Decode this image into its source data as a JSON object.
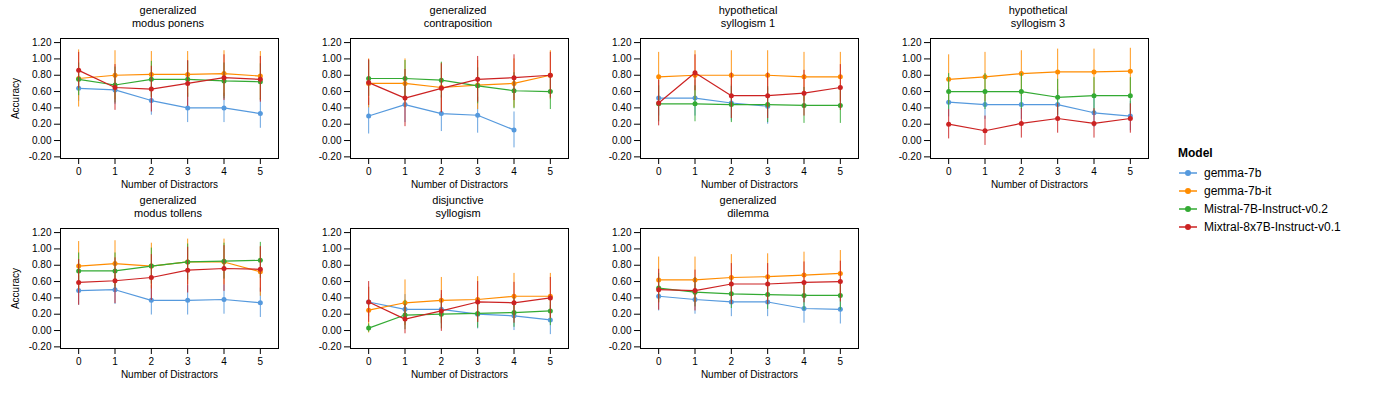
{
  "chart_data": [
    {
      "type": "line",
      "title": "generalized\nmodus ponens",
      "xlabel": "Number of Distractors",
      "ylabel": "Accuracy",
      "legend": "right",
      "legend_title": "Model",
      "x": [
        0,
        1,
        2,
        3,
        4,
        5
      ],
      "xlim": [
        -0.5,
        5.5
      ],
      "xticks": [
        0,
        1,
        2,
        3,
        4,
        5
      ],
      "ylim": [
        -0.22,
        1.25
      ],
      "yticks": [
        {
          "value": -0.2,
          "label": "-0.20"
        },
        {
          "value": 0.0,
          "label": "0.00"
        },
        {
          "value": 0.2,
          "label": "0.20"
        },
        {
          "value": 0.4,
          "label": "0.40"
        },
        {
          "value": 0.6,
          "label": "0.60"
        },
        {
          "value": 0.8,
          "label": "0.80"
        },
        {
          "value": 1.0,
          "label": "1.00"
        },
        {
          "value": 1.2,
          "label": "1.20"
        }
      ],
      "series": [
        {
          "name": "gemma-7b",
          "color": "#5599DD",
          "marker": "circle",
          "values": [
            0.64,
            0.62,
            0.49,
            0.4,
            0.4,
            0.33
          ],
          "yerr": [
            0.16,
            0.18,
            0.18,
            0.18,
            0.18,
            0.18
          ]
        },
        {
          "name": "gemma-7b-it",
          "color": "#FF8C00",
          "marker": "circle",
          "values": [
            0.76,
            0.8,
            0.81,
            0.81,
            0.82,
            0.79
          ],
          "yerr": [
            0.35,
            0.3,
            0.28,
            0.28,
            0.28,
            0.3
          ]
        },
        {
          "name": "Mistral-7B-Instruct-v0.2",
          "color": "#33AA33",
          "marker": "circle",
          "values": [
            0.75,
            0.68,
            0.75,
            0.75,
            0.73,
            0.72
          ],
          "yerr": [
            0.2,
            0.22,
            0.22,
            0.22,
            0.22,
            0.22
          ]
        },
        {
          "name": "Mixtral-8x7B-Instruct-v0.1",
          "color": "#CC2222",
          "marker": "circle",
          "values": [
            0.86,
            0.65,
            0.63,
            0.7,
            0.77,
            0.75
          ],
          "yerr": [
            0.22,
            0.28,
            0.28,
            0.28,
            0.28,
            0.28
          ]
        }
      ]
    },
    {
      "type": "line",
      "title": "generalized\ncontraposition",
      "xlabel": "Number of Distractors",
      "x": [
        0,
        1,
        2,
        3,
        4,
        5
      ],
      "xlim": [
        -0.5,
        5.5
      ],
      "xticks": [
        0,
        1,
        2,
        3,
        4,
        5
      ],
      "ylim": [
        -0.22,
        1.25
      ],
      "yticks": [
        {
          "value": -0.2,
          "label": "-0.20"
        },
        {
          "value": 0.0,
          "label": "0.00"
        },
        {
          "value": 0.2,
          "label": "0.20"
        },
        {
          "value": 0.4,
          "label": "0.40"
        },
        {
          "value": 0.6,
          "label": "0.60"
        },
        {
          "value": 0.8,
          "label": "0.80"
        },
        {
          "value": 1.0,
          "label": "1.00"
        },
        {
          "value": 1.2,
          "label": "1.20"
        }
      ],
      "series": [
        {
          "name": "gemma-7b",
          "color": "#5599DD",
          "marker": "circle",
          "values": [
            0.3,
            0.44,
            0.33,
            0.31,
            0.13,
            null
          ],
          "yerr": [
            0.22,
            0.22,
            0.22,
            0.22,
            0.22,
            0.22
          ]
        },
        {
          "name": "gemma-7b-it",
          "color": "#FF8C00",
          "marker": "circle",
          "values": [
            0.7,
            0.7,
            0.65,
            0.68,
            0.7,
            0.8
          ],
          "yerr": [
            0.3,
            0.3,
            0.3,
            0.3,
            0.3,
            0.3
          ]
        },
        {
          "name": "Mistral-7B-Instruct-v0.2",
          "color": "#33AA33",
          "marker": "circle",
          "values": [
            0.76,
            0.76,
            0.74,
            0.67,
            0.61,
            0.6
          ],
          "yerr": [
            0.22,
            0.22,
            0.22,
            0.22,
            0.22,
            0.22
          ]
        },
        {
          "name": "Mixtral-8x7B-Instruct-v0.1",
          "color": "#CC2222",
          "marker": "circle",
          "values": [
            0.71,
            0.52,
            0.64,
            0.75,
            0.77,
            0.8
          ],
          "yerr": [
            0.28,
            0.35,
            0.3,
            0.28,
            0.28,
            0.28
          ]
        }
      ]
    },
    {
      "type": "line",
      "title": "hypothetical\nsyllogism 1",
      "xlabel": "Number of Distractors",
      "x": [
        0,
        1,
        2,
        3,
        4,
        5
      ],
      "xlim": [
        -0.5,
        5.5
      ],
      "xticks": [
        0,
        1,
        2,
        3,
        4,
        5
      ],
      "ylim": [
        -0.22,
        1.25
      ],
      "yticks": [
        {
          "value": -0.2,
          "label": "-0.20"
        },
        {
          "value": 0.0,
          "label": "0.00"
        },
        {
          "value": 0.2,
          "label": "0.20"
        },
        {
          "value": 0.4,
          "label": "0.40"
        },
        {
          "value": 0.6,
          "label": "0.60"
        },
        {
          "value": 0.8,
          "label": "0.80"
        },
        {
          "value": 1.0,
          "label": "1.00"
        },
        {
          "value": 1.2,
          "label": "1.20"
        }
      ],
      "series": [
        {
          "name": "gemma-7b",
          "color": "#5599DD",
          "marker": "circle",
          "values": [
            0.52,
            0.52,
            0.46,
            0.42,
            null,
            null
          ],
          "yerr": [
            0.22,
            0.22,
            0.22,
            0.22,
            0.22,
            0.22
          ]
        },
        {
          "name": "gemma-7b-it",
          "color": "#FF8C00",
          "marker": "circle",
          "values": [
            0.78,
            0.8,
            0.8,
            0.8,
            0.78,
            0.78
          ],
          "yerr": [
            0.3,
            0.3,
            0.3,
            0.3,
            0.3,
            0.3
          ]
        },
        {
          "name": "Mistral-7B-Instruct-v0.2",
          "color": "#33AA33",
          "marker": "circle",
          "values": [
            0.45,
            0.45,
            0.44,
            0.44,
            0.43,
            0.43
          ],
          "yerr": [
            0.22,
            0.22,
            0.22,
            0.22,
            0.22,
            0.22
          ]
        },
        {
          "name": "Mixtral-8x7B-Instruct-v0.1",
          "color": "#CC2222",
          "marker": "circle",
          "values": [
            0.46,
            0.83,
            0.55,
            0.55,
            0.58,
            0.65
          ],
          "yerr": [
            0.28,
            0.22,
            0.28,
            0.28,
            0.28,
            0.28
          ]
        }
      ]
    },
    {
      "type": "line",
      "title": "hypothetical\nsyllogism 3",
      "xlabel": "Number of Distractors",
      "x": [
        0,
        1,
        2,
        3,
        4,
        5
      ],
      "xlim": [
        -0.5,
        5.5
      ],
      "xticks": [
        0,
        1,
        2,
        3,
        4,
        5
      ],
      "ylim": [
        -0.22,
        1.25
      ],
      "yticks": [
        {
          "value": -0.2,
          "label": "-0.20"
        },
        {
          "value": 0.0,
          "label": "0.00"
        },
        {
          "value": 0.2,
          "label": "0.20"
        },
        {
          "value": 0.4,
          "label": "0.40"
        },
        {
          "value": 0.6,
          "label": "0.60"
        },
        {
          "value": 0.8,
          "label": "0.80"
        },
        {
          "value": 1.0,
          "label": "1.00"
        },
        {
          "value": 1.2,
          "label": "1.20"
        }
      ],
      "series": [
        {
          "name": "gemma-7b",
          "color": "#5599DD",
          "marker": "circle",
          "values": [
            0.47,
            0.44,
            0.44,
            0.44,
            0.34,
            0.3
          ],
          "yerr": [
            0.18,
            0.18,
            0.18,
            0.18,
            0.18,
            0.18
          ]
        },
        {
          "name": "gemma-7b-it",
          "color": "#FF8C00",
          "marker": "circle",
          "values": [
            0.75,
            0.78,
            0.82,
            0.84,
            0.84,
            0.85
          ],
          "yerr": [
            0.3,
            0.3,
            0.28,
            0.28,
            0.28,
            0.28
          ]
        },
        {
          "name": "Mistral-7B-Instruct-v0.2",
          "color": "#33AA33",
          "marker": "circle",
          "values": [
            0.6,
            0.6,
            0.6,
            0.53,
            0.55,
            0.55
          ],
          "yerr": [
            0.22,
            0.22,
            0.22,
            0.22,
            0.22,
            0.22
          ]
        },
        {
          "name": "Mixtral-8x7B-Instruct-v0.1",
          "color": "#CC2222",
          "marker": "circle",
          "values": [
            0.2,
            0.12,
            0.21,
            0.27,
            0.21,
            0.27
          ],
          "yerr": [
            0.18,
            0.18,
            0.18,
            0.18,
            0.18,
            0.18
          ]
        }
      ]
    },
    {
      "type": "line",
      "title": "generalized\nmodus tollens",
      "xlabel": "Number of Distractors",
      "ylabel": "Accuracy",
      "x": [
        0,
        1,
        2,
        3,
        4,
        5
      ],
      "xlim": [
        -0.5,
        5.5
      ],
      "xticks": [
        0,
        1,
        2,
        3,
        4,
        5
      ],
      "ylim": [
        -0.22,
        1.25
      ],
      "yticks": [
        {
          "value": -0.2,
          "label": "-0.20"
        },
        {
          "value": 0.0,
          "label": "0.00"
        },
        {
          "value": 0.2,
          "label": "0.20"
        },
        {
          "value": 0.4,
          "label": "0.40"
        },
        {
          "value": 0.6,
          "label": "0.60"
        },
        {
          "value": 0.8,
          "label": "0.80"
        },
        {
          "value": 1.0,
          "label": "1.00"
        },
        {
          "value": 1.2,
          "label": "1.20"
        }
      ],
      "series": [
        {
          "name": "gemma-7b",
          "color": "#5599DD",
          "marker": "circle",
          "values": [
            0.49,
            0.5,
            0.37,
            0.37,
            0.38,
            0.34
          ],
          "yerr": [
            0.18,
            0.18,
            0.18,
            0.18,
            0.18,
            0.18
          ]
        },
        {
          "name": "gemma-7b-it",
          "color": "#FF8C00",
          "marker": "circle",
          "values": [
            0.79,
            0.82,
            0.79,
            0.84,
            0.84,
            0.72
          ],
          "yerr": [
            0.3,
            0.28,
            0.28,
            0.28,
            0.28,
            0.3
          ]
        },
        {
          "name": "Mistral-7B-Instruct-v0.2",
          "color": "#33AA33",
          "marker": "circle",
          "values": [
            0.73,
            0.73,
            0.79,
            0.84,
            0.85,
            0.86
          ],
          "yerr": [
            0.22,
            0.22,
            0.22,
            0.22,
            0.22,
            0.22
          ]
        },
        {
          "name": "Mixtral-8x7B-Instruct-v0.1",
          "color": "#CC2222",
          "marker": "circle",
          "values": [
            0.59,
            0.61,
            0.65,
            0.74,
            0.76,
            0.75
          ],
          "yerr": [
            0.28,
            0.28,
            0.28,
            0.28,
            0.28,
            0.28
          ]
        }
      ]
    },
    {
      "type": "line",
      "title": "disjunctive\nsyllogism",
      "xlabel": "Number of Distractors",
      "x": [
        0,
        1,
        2,
        3,
        4,
        5
      ],
      "xlim": [
        -0.5,
        5.5
      ],
      "xticks": [
        0,
        1,
        2,
        3,
        4,
        5
      ],
      "ylim": [
        -0.22,
        1.25
      ],
      "yticks": [
        {
          "value": -0.2,
          "label": "-0.20"
        },
        {
          "value": 0.0,
          "label": "0.00"
        },
        {
          "value": 0.2,
          "label": "0.20"
        },
        {
          "value": 0.4,
          "label": "0.40"
        },
        {
          "value": 0.6,
          "label": "0.60"
        },
        {
          "value": 0.8,
          "label": "0.80"
        },
        {
          "value": 1.0,
          "label": "1.00"
        },
        {
          "value": 1.2,
          "label": "1.20"
        }
      ],
      "series": [
        {
          "name": "gemma-7b",
          "color": "#5599DD",
          "marker": "circle",
          "values": [
            0.35,
            0.26,
            0.26,
            0.2,
            0.18,
            0.13
          ],
          "yerr": [
            0.18,
            0.18,
            0.18,
            0.18,
            0.18,
            0.18
          ]
        },
        {
          "name": "gemma-7b-it",
          "color": "#FF8C00",
          "marker": "circle",
          "values": [
            0.25,
            0.34,
            0.37,
            0.38,
            0.42,
            0.42
          ],
          "yerr": [
            0.28,
            0.28,
            0.28,
            0.28,
            0.28,
            0.28
          ]
        },
        {
          "name": "Mistral-7B-Instruct-v0.2",
          "color": "#33AA33",
          "marker": "circle",
          "values": [
            0.03,
            0.19,
            0.2,
            0.21,
            0.22,
            0.24
          ],
          "yerr": [
            0.05,
            0.18,
            0.18,
            0.18,
            0.18,
            0.18
          ]
        },
        {
          "name": "Mixtral-8x7B-Instruct-v0.1",
          "color": "#CC2222",
          "marker": "circle",
          "values": [
            0.35,
            0.14,
            0.24,
            0.35,
            0.34,
            0.4
          ],
          "yerr": [
            0.25,
            0.18,
            0.25,
            0.25,
            0.25,
            0.25
          ]
        }
      ]
    },
    {
      "type": "line",
      "title": "generalized\ndilemma",
      "xlabel": "Number of Distractors",
      "x": [
        0,
        1,
        2,
        3,
        4,
        5
      ],
      "xlim": [
        -0.5,
        5.5
      ],
      "xticks": [
        0,
        1,
        2,
        3,
        4,
        5
      ],
      "ylim": [
        -0.22,
        1.25
      ],
      "yticks": [
        {
          "value": -0.2,
          "label": "-0.20"
        },
        {
          "value": 0.0,
          "label": "0.00"
        },
        {
          "value": 0.2,
          "label": "0.20"
        },
        {
          "value": 0.4,
          "label": "0.40"
        },
        {
          "value": 0.6,
          "label": "0.60"
        },
        {
          "value": 0.8,
          "label": "0.80"
        },
        {
          "value": 1.0,
          "label": "1.00"
        },
        {
          "value": 1.2,
          "label": "1.20"
        }
      ],
      "series": [
        {
          "name": "gemma-7b",
          "color": "#5599DD",
          "marker": "circle",
          "values": [
            0.42,
            0.38,
            0.35,
            0.35,
            0.27,
            0.26
          ],
          "yerr": [
            0.18,
            0.18,
            0.18,
            0.18,
            0.18,
            0.18
          ]
        },
        {
          "name": "gemma-7b-it",
          "color": "#FF8C00",
          "marker": "circle",
          "values": [
            0.62,
            0.62,
            0.65,
            0.66,
            0.68,
            0.7
          ],
          "yerr": [
            0.28,
            0.28,
            0.28,
            0.28,
            0.28,
            0.28
          ]
        },
        {
          "name": "Mistral-7B-Instruct-v0.2",
          "color": "#33AA33",
          "marker": "circle",
          "values": [
            0.52,
            0.47,
            0.45,
            0.44,
            0.43,
            0.43
          ],
          "yerr": [
            0.18,
            0.18,
            0.18,
            0.18,
            0.18,
            0.18
          ]
        },
        {
          "name": "Mixtral-8x7B-Instruct-v0.1",
          "color": "#CC2222",
          "marker": "circle",
          "values": [
            0.5,
            0.49,
            0.57,
            0.57,
            0.59,
            0.6
          ],
          "yerr": [
            0.25,
            0.25,
            0.25,
            0.25,
            0.25,
            0.25
          ]
        }
      ]
    }
  ]
}
